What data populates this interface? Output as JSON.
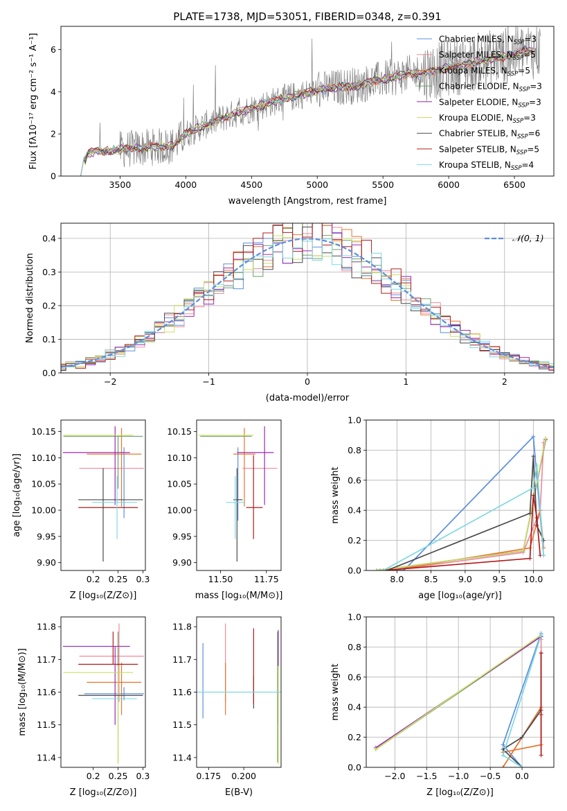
{
  "colors": {
    "chabrier_miles": "#5b8ee0",
    "salpeter_miles": "#f08a9a",
    "kroupa_miles": "#e8742c",
    "chabrier_elodie": "#6e9e6a",
    "salpeter_elodie": "#9b27b5",
    "kroupa_elodie": "#c8e060",
    "chabrier_stelib": "#4a4a4a",
    "salpeter_stelib": "#b31b1b",
    "kroupa_stelib": "#7fd8e0",
    "data": "#808080",
    "grid": "#b0b0b0"
  },
  "chart_data": [
    {
      "id": "spectrum",
      "type": "line",
      "title": "PLATE=1738, MJD=53051, FIBERID=0348, z=0.391",
      "xlabel": "wavelength [Angstrom, rest frame]",
      "ylabel": "Flux [fλ10⁻¹⁷ erg cm⁻² s⁻¹ A⁻¹]",
      "xlim": [
        3050,
        6800
      ],
      "ylim": [
        0,
        7.1
      ],
      "xticks": [
        3500,
        4000,
        4500,
        5000,
        5500,
        6000,
        6500
      ],
      "yticks": [
        0,
        2,
        4,
        6
      ],
      "grid": false,
      "legend_position": "top-right",
      "legend": [
        "Chabrier MILES, N_SSP=3",
        "Salpeter MILES, N_SSP=5",
        "Kroupa MILES, N_SSP=5",
        "Chabrier ELODIE, N_SSP=3",
        "Salpeter ELODIE, N_SSP=3",
        "Kroupa ELODIE, N_SSP=3",
        "Chabrier STELIB, N_SSP=6",
        "Salpeter STELIB, N_SSP=5",
        "Kroupa STELIB, N_SSP=4"
      ],
      "model_continuum": {
        "x": [
          3200,
          3250,
          3300,
          3400,
          3500,
          3600,
          3700,
          3800,
          3900,
          3950,
          4000,
          4100,
          4200,
          4300,
          4400,
          4500,
          4600,
          4700,
          4800,
          4900,
          5000,
          5100,
          5200,
          5300,
          5400,
          5500,
          5600,
          5700,
          5800,
          5900,
          6000,
          6100,
          6200,
          6300,
          6400,
          6500,
          6600
        ],
        "y": [
          0.0,
          1.05,
          1.15,
          1.2,
          1.25,
          1.3,
          1.35,
          1.4,
          1.45,
          1.7,
          2.0,
          2.3,
          2.55,
          2.8,
          3.0,
          3.2,
          3.4,
          3.6,
          3.75,
          3.9,
          4.05,
          4.15,
          4.25,
          4.3,
          4.45,
          4.6,
          4.7,
          4.85,
          4.9,
          5.0,
          5.15,
          5.25,
          5.4,
          5.55,
          5.65,
          5.8,
          5.95
        ]
      }
    },
    {
      "id": "residuals",
      "type": "step",
      "xlabel": "(data-model)/error",
      "ylabel": "Normed distribution",
      "xlim": [
        -2.5,
        2.5
      ],
      "ylim": [
        0,
        0.445
      ],
      "xticks": [
        -2,
        -1,
        0,
        1,
        2
      ],
      "yticks": [
        0.0,
        0.1,
        0.2,
        0.3,
        0.4
      ],
      "grid": true,
      "legend_position": "top-right",
      "gaussian_label": "𝒩(0, 1)",
      "bin_width": 0.1
    },
    {
      "id": "age-vs-Z",
      "type": "errorbar",
      "xlabel": "Z [log₁₀(Z/Z⊙)]",
      "ylabel": "age  [log₁₀(age/yr)]",
      "xlim": [
        0.135,
        0.305
      ],
      "ylim": [
        9.885,
        10.172
      ],
      "xticks": [
        0.2,
        0.25,
        0.3
      ],
      "yticks": [
        9.9,
        9.95,
        10.0,
        10.05,
        10.1,
        10.15
      ],
      "points": [
        {
          "series": "chabrier_miles",
          "x": 0.262,
          "y": 10.02,
          "xerr": [
            0.0,
            0.0
          ],
          "yerr": [
            0.035,
            0.1
          ]
        },
        {
          "series": "salpeter_miles",
          "x": 0.252,
          "y": 10.08,
          "xerr": [
            0.08,
            0.05
          ],
          "yerr": [
            0.0,
            0.0
          ]
        },
        {
          "series": "kroupa_miles",
          "x": 0.257,
          "y": 10.107,
          "xerr": [
            0.07,
            0.04
          ],
          "yerr": [
            0.1,
            0.05
          ]
        },
        {
          "series": "chabrier_elodie",
          "x": 0.25,
          "y": 10.141,
          "xerr": [
            0.11,
            0.05
          ],
          "yerr": [
            0.1,
            0.0
          ]
        },
        {
          "series": "salpeter_elodie",
          "x": 0.244,
          "y": 10.11,
          "xerr": [
            0.105,
            0.03
          ],
          "yerr": [
            0.1,
            0.05
          ]
        },
        {
          "series": "kroupa_elodie",
          "x": 0.25,
          "y": 10.143,
          "xerr": [
            0.11,
            0.03
          ],
          "yerr": [
            0.0,
            0.0
          ]
        },
        {
          "series": "chabrier_stelib",
          "x": 0.22,
          "y": 10.02,
          "xerr": [
            0.05,
            0.08
          ],
          "yerr": [
            0.118,
            0.06
          ]
        },
        {
          "series": "salpeter_stelib",
          "x": 0.24,
          "y": 10.005,
          "xerr": [
            0.07,
            0.05
          ],
          "yerr": [
            0.0,
            0.0
          ]
        },
        {
          "series": "kroupa_stelib",
          "x": 0.248,
          "y": 10.015,
          "xerr": [
            0.05,
            0.04
          ],
          "yerr": [
            0.07,
            0.05
          ]
        }
      ]
    },
    {
      "id": "age-vs-mass",
      "type": "errorbar",
      "xlabel": "mass [log₁₀(M/M⊙)]",
      "ylabel": "",
      "xlim": [
        11.37,
        11.83
      ],
      "ylim": [
        9.885,
        10.172
      ],
      "xticks": [
        11.5,
        11.75
      ],
      "yticks": [
        9.9,
        9.95,
        10.0,
        10.05,
        10.1,
        10.15
      ],
      "points": [
        {
          "series": "chabrier_miles",
          "x": 11.595,
          "y": 10.02,
          "xerr": [
            0.0,
            0.0
          ],
          "yerr": [
            0.04,
            0.1
          ]
        },
        {
          "series": "salpeter_miles",
          "x": 11.71,
          "y": 10.08,
          "xerr": [
            0.09,
            0.1
          ],
          "yerr": [
            0.0,
            0.0
          ]
        },
        {
          "series": "kroupa_miles",
          "x": 11.63,
          "y": 10.107,
          "xerr": [
            0.06,
            0.06
          ],
          "yerr": [
            0.1,
            0.05
          ]
        },
        {
          "series": "chabrier_elodie",
          "x": 11.59,
          "y": 10.141,
          "xerr": [
            0.2,
            0.08
          ],
          "yerr": [
            0.0,
            0.0
          ]
        },
        {
          "series": "salpeter_elodie",
          "x": 11.74,
          "y": 10.11,
          "xerr": [
            0.15,
            0.05
          ],
          "yerr": [
            0.1,
            0.05
          ]
        },
        {
          "series": "kroupa_elodie",
          "x": 11.66,
          "y": 10.143,
          "xerr": [
            0.28,
            0.02
          ],
          "yerr": [
            0.0,
            0.0
          ]
        },
        {
          "series": "chabrier_stelib",
          "x": 11.59,
          "y": 10.02,
          "xerr": [
            0.02,
            0.03
          ],
          "yerr": [
            0.118,
            0.06
          ]
        },
        {
          "series": "salpeter_stelib",
          "x": 11.68,
          "y": 10.005,
          "xerr": [
            0.04,
            0.05
          ],
          "yerr": [
            0.06,
            0.1
          ]
        },
        {
          "series": "kroupa_stelib",
          "x": 11.58,
          "y": 10.015,
          "xerr": [
            0.05,
            0.05
          ],
          "yerr": [
            0.07,
            0.05
          ]
        }
      ]
    },
    {
      "id": "weight-vs-age",
      "type": "line",
      "xlabel": "age  [log₁₀(age/yr)]",
      "ylabel": "mass weight",
      "xlim": [
        7.55,
        10.3
      ],
      "ylim": [
        0,
        1.0
      ],
      "xticks": [
        8.0,
        8.5,
        9.0,
        9.5,
        10.0
      ],
      "yticks": [
        0.0,
        0.2,
        0.4,
        0.6,
        0.8,
        1.0
      ],
      "grid": true,
      "series": [
        {
          "name": "chabrier_miles",
          "x": [
            7.75,
            8.1,
            10.0,
            10.15
          ],
          "y": [
            0.0,
            0.0,
            0.89,
            0.1
          ]
        },
        {
          "name": "salpeter_miles",
          "x": [
            7.9,
            9.85,
            10.1,
            10.15
          ],
          "y": [
            0.0,
            0.12,
            0.4,
            0.85
          ]
        },
        {
          "name": "kroupa_miles",
          "x": [
            7.9,
            9.95,
            10.1,
            10.15
          ],
          "y": [
            0.0,
            0.15,
            0.4,
            0.15
          ]
        },
        {
          "name": "chabrier_elodie",
          "x": [
            7.7,
            9.85,
            10.18
          ],
          "y": [
            0.0,
            0.13,
            0.87
          ]
        },
        {
          "name": "salpeter_elodie",
          "x": [
            7.7,
            9.85,
            10.18
          ],
          "y": [
            0.0,
            0.13,
            0.87
          ]
        },
        {
          "name": "kroupa_elodie",
          "x": [
            7.7,
            9.85,
            10.18
          ],
          "y": [
            0.0,
            0.13,
            0.88
          ]
        },
        {
          "name": "chabrier_stelib",
          "x": [
            7.85,
            9.95,
            10.0,
            10.05,
            10.15
          ],
          "y": [
            0.0,
            0.38,
            0.76,
            0.3,
            0.2
          ]
        },
        {
          "name": "salpeter_stelib",
          "x": [
            7.8,
            9.95,
            10.0,
            10.05,
            10.1
          ],
          "y": [
            0.0,
            0.08,
            0.5,
            0.35,
            0.1
          ]
        },
        {
          "name": "kroupa_stelib",
          "x": [
            7.8,
            10.0,
            10.05,
            10.15
          ],
          "y": [
            0.0,
            0.55,
            0.7,
            0.1
          ]
        }
      ]
    },
    {
      "id": "mass-vs-Z",
      "type": "errorbar",
      "xlabel": "Z [log₁₀(Z/Z⊙)]",
      "ylabel": "mass [log₁₀(M/M⊙)]",
      "xlim": [
        0.135,
        0.305
      ],
      "ylim": [
        11.37,
        11.83
      ],
      "xticks": [
        0.2,
        0.25,
        0.3
      ],
      "yticks": [
        11.4,
        11.5,
        11.6,
        11.7,
        11.8
      ],
      "points": [
        {
          "series": "chabrier_miles",
          "x": 0.262,
          "y": 11.595,
          "xerr": [
            0.08,
            0.04
          ],
          "yerr": [
            0.02,
            0.02
          ]
        },
        {
          "series": "salpeter_miles",
          "x": 0.252,
          "y": 11.71,
          "xerr": [
            0.08,
            0.05
          ],
          "yerr": [
            0.14,
            0.1
          ]
        },
        {
          "series": "kroupa_miles",
          "x": 0.257,
          "y": 11.63,
          "xerr": [
            0.07,
            0.04
          ],
          "yerr": [
            0.1,
            0.06
          ]
        },
        {
          "series": "chabrier_elodie",
          "x": 0.25,
          "y": 11.685,
          "xerr": [
            0.0,
            0.0
          ],
          "yerr": [
            0.3,
            0.1
          ]
        },
        {
          "series": "salpeter_elodie",
          "x": 0.244,
          "y": 11.74,
          "xerr": [
            0.105,
            0.03
          ],
          "yerr": [
            0.24,
            0.0
          ]
        },
        {
          "series": "kroupa_elodie",
          "x": 0.25,
          "y": 11.66,
          "xerr": [
            0.11,
            0.03
          ],
          "yerr": [
            0.28,
            0.02
          ]
        },
        {
          "series": "chabrier_stelib",
          "x": 0.22,
          "y": 11.59,
          "xerr": [
            0.05,
            0.08
          ],
          "yerr": [
            0.0,
            0.0
          ]
        },
        {
          "series": "salpeter_stelib",
          "x": 0.24,
          "y": 11.685,
          "xerr": [
            0.07,
            0.05
          ],
          "yerr": [
            0.0,
            0.1
          ]
        },
        {
          "series": "kroupa_stelib",
          "x": 0.248,
          "y": 11.58,
          "xerr": [
            0.05,
            0.04
          ],
          "yerr": [
            0.0,
            0.0
          ]
        }
      ]
    },
    {
      "id": "mass-vs-ebv",
      "type": "errorbar",
      "xlabel": "E(B-V)",
      "ylabel": "",
      "xlim": [
        0.1665,
        0.2265
      ],
      "ylim": [
        11.37,
        11.83
      ],
      "xticks": [
        0.175,
        0.2
      ],
      "yticks": [
        11.4,
        11.5,
        11.6,
        11.7,
        11.8
      ],
      "points": [
        {
          "series": "chabrier_miles",
          "x": 0.171,
          "y": 11.64,
          "xerr": [
            0.0,
            0.0
          ],
          "yerr": [
            0.12,
            0.11
          ]
        },
        {
          "series": "salpeter_miles",
          "x": 0.187,
          "y": 11.71,
          "xerr": [
            0.0,
            0.0
          ],
          "yerr": [
            0.14,
            0.1
          ]
        },
        {
          "series": "kroupa_miles",
          "x": 0.187,
          "y": 11.63,
          "xerr": [
            0.0,
            0.0
          ],
          "yerr": [
            0.1,
            0.06
          ]
        },
        {
          "series": "chabrier_elodie",
          "x": 0.224,
          "y": 11.685,
          "xerr": [
            0.0,
            0.0
          ],
          "yerr": [
            0.3,
            0.1
          ]
        },
        {
          "series": "salpeter_elodie",
          "x": 0.2245,
          "y": 11.74,
          "xerr": [
            0.0,
            0.0
          ],
          "yerr": [
            0.24,
            0.05
          ]
        },
        {
          "series": "kroupa_elodie",
          "x": 0.2245,
          "y": 11.66,
          "xerr": [
            0.0,
            0.0
          ],
          "yerr": [
            0.28,
            0.02
          ]
        },
        {
          "series": "chabrier_stelib",
          "x": 0.207,
          "y": 11.6,
          "xerr": [
            0.0,
            0.0
          ],
          "yerr": [
            0.05,
            0.05
          ]
        },
        {
          "series": "salpeter_stelib",
          "x": 0.207,
          "y": 11.685,
          "xerr": [
            0.0,
            0.0
          ],
          "yerr": [
            0.12,
            0.11
          ]
        },
        {
          "series": "kroupa_stelib",
          "x": 0.2075,
          "y": 11.6,
          "xerr": [
            0.07,
            0.09
          ]
        }
      ]
    },
    {
      "id": "weight-vs-Z",
      "type": "line",
      "xlabel": "Z [log₁₀(Z/Z⊙)]",
      "ylabel": "mass weight",
      "xlim": [
        -2.45,
        0.5
      ],
      "ylim": [
        0,
        1.0
      ],
      "xticks": [
        -2.0,
        -1.5,
        -1.0,
        -0.5,
        0.0
      ],
      "yticks": [
        0.0,
        0.2,
        0.4,
        0.6,
        0.8,
        1.0
      ],
      "grid": true,
      "series": [
        {
          "name": "chabrier_miles",
          "x": [
            0.0,
            -0.3,
            0.3
          ],
          "y": [
            0.0,
            0.15,
            0.89
          ]
        },
        {
          "name": "salpeter_miles",
          "x": [
            -0.3,
            0.3,
            0.3
          ],
          "y": [
            0.0,
            0.4,
            0.85
          ]
        },
        {
          "name": "kroupa_miles",
          "x": [
            -0.3,
            0.3,
            0.3,
            -0.3
          ],
          "y": [
            0.0,
            0.4,
            0.15,
            0.1
          ]
        },
        {
          "name": "chabrier_elodie",
          "x": [
            -2.3,
            0.3
          ],
          "y": [
            0.12,
            0.87
          ]
        },
        {
          "name": "salpeter_elodie",
          "x": [
            -2.3,
            0.3
          ],
          "y": [
            0.13,
            0.87
          ]
        },
        {
          "name": "kroupa_elodie",
          "x": [
            -2.3,
            0.3
          ],
          "y": [
            0.12,
            0.88
          ]
        },
        {
          "name": "chabrier_stelib",
          "x": [
            0.0,
            -0.3,
            0.0,
            0.3,
            0.3
          ],
          "y": [
            0.0,
            0.12,
            0.2,
            0.38,
            0.76
          ]
        },
        {
          "name": "salpeter_stelib",
          "x": [
            0.3,
            0.3,
            0.3
          ],
          "y": [
            0.08,
            0.35,
            0.76
          ]
        },
        {
          "name": "kroupa_stelib",
          "x": [
            0.0,
            -0.3,
            0.3
          ],
          "y": [
            0.0,
            0.08,
            0.88
          ]
        }
      ]
    }
  ]
}
